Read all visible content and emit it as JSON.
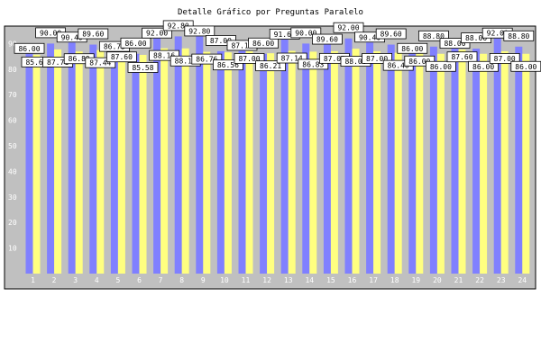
{
  "chart_data": {
    "type": "bar",
    "title": "Detalle Gráfico por Preguntas Paralelo",
    "xlabel": "",
    "ylabel": "",
    "ylim": [
      0,
      100
    ],
    "y_ticks": [
      10,
      20,
      30,
      40,
      50,
      60,
      70,
      80,
      90
    ],
    "grid": false,
    "legend": "none",
    "categories": [
      "1",
      "2",
      "3",
      "4",
      "5",
      "6",
      "7",
      "8",
      "9",
      "10",
      "11",
      "12",
      "13",
      "14",
      "15",
      "16",
      "17",
      "18",
      "19",
      "20",
      "21",
      "22",
      "23",
      "24"
    ],
    "series": [
      {
        "color": "#8080ff",
        "values": [
          86.0,
          90.0,
          90.4,
          89.6,
          86.75,
          86.0,
          92.0,
          92.8,
          92.8,
          87.0,
          87.18,
          86.0,
          91.6,
          90.0,
          89.6,
          92.0,
          90.4,
          89.6,
          86.0,
          88.8,
          88.0,
          88.0,
          92.0,
          88.8
        ],
        "labels": [
          "86.00",
          "90.00",
          "90.40",
          "89.60",
          "86.75",
          "86.00",
          "92.00",
          "92.80",
          "92.80",
          "87.00",
          "87.18",
          "86.00",
          "91.60",
          "90.00",
          "89.60",
          "92.00",
          "90.40",
          "89.60",
          "86.00",
          "88.80",
          "88.00",
          "88.00",
          "92.00",
          "88.80"
        ]
      },
      {
        "color": "#ffff80",
        "values": [
          85.62,
          87.71,
          86.89,
          87.44,
          87.6,
          85.58,
          88.16,
          88.12,
          86.76,
          86.56,
          87.0,
          86.21,
          87.14,
          86.83,
          87.02,
          88.0,
          87.0,
          86.4,
          86.0,
          86.0,
          87.6,
          86.0,
          87.0,
          86.0
        ],
        "labels": [
          "85.62",
          "87.71",
          "86.89",
          "87.44",
          "87.60",
          "85.58",
          "88.16",
          "88.12",
          "86.76",
          "86.56",
          "87.00",
          "86.21",
          "87.14",
          "86.83",
          "87.02",
          "88.00",
          "87.00",
          "86.40",
          "86.00",
          "86.00",
          "87.60",
          "86.00",
          "87.00",
          "86.00"
        ]
      }
    ]
  },
  "colors": {
    "plot_background": "#c0c0c0",
    "axis_text": "#ffffff",
    "label_box": "#ffffff",
    "label_text": "#000000"
  }
}
